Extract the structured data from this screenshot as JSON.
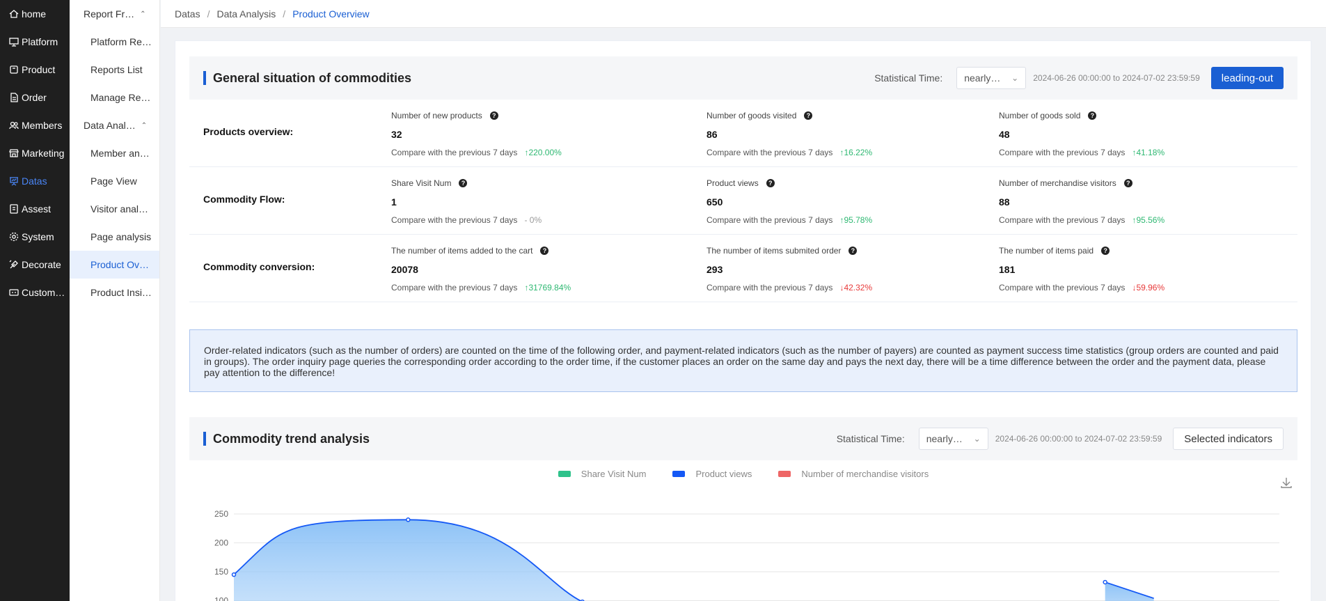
{
  "nav_primary": [
    {
      "label": "home",
      "icon": "home-icon"
    },
    {
      "label": "Platform",
      "icon": "monitor-icon"
    },
    {
      "label": "Product",
      "icon": "product-icon"
    },
    {
      "label": "Order",
      "icon": "document-icon"
    },
    {
      "label": "Members",
      "icon": "users-icon"
    },
    {
      "label": "Marketing",
      "icon": "shop-icon"
    },
    {
      "label": "Datas",
      "icon": "presentation-icon",
      "active": true
    },
    {
      "label": "Assest",
      "icon": "asset-icon"
    },
    {
      "label": "System",
      "icon": "gear-icon"
    },
    {
      "label": "Decorate",
      "icon": "decorate-icon"
    },
    {
      "label": "Custom…",
      "icon": "custom-icon"
    }
  ],
  "nav_secondary": [
    {
      "type": "group",
      "label": "Report Fr…"
    },
    {
      "type": "item",
      "label": "Platform Re…"
    },
    {
      "type": "item",
      "label": "Reports List"
    },
    {
      "type": "item",
      "label": "Manage Re…"
    },
    {
      "type": "group",
      "label": "Data Anal…"
    },
    {
      "type": "item",
      "label": "Member an…"
    },
    {
      "type": "item",
      "label": "Page View"
    },
    {
      "type": "item",
      "label": "Visitor anal…"
    },
    {
      "type": "item",
      "label": "Page analysis"
    },
    {
      "type": "item",
      "label": "Product Ov…",
      "active": true
    },
    {
      "type": "item",
      "label": "Product Insi…"
    }
  ],
  "breadcrumb": [
    "Datas",
    "Data Analysis",
    "Product Overview"
  ],
  "general": {
    "title": "General situation of commodities",
    "stat_label": "Statistical Time:",
    "select_value": "nearly…",
    "date_range": "2024-06-26 00:00:00 to 2024-07-02 23:59:59",
    "export_label": "leading-out"
  },
  "overview_rows": [
    {
      "label": "Products overview:",
      "metrics": [
        {
          "title": "Number of new products",
          "value": "32",
          "compare": "Compare with the previous 7 days",
          "change": "↑220.00%",
          "trend": "up"
        },
        {
          "title": "Number of goods visited",
          "value": "86",
          "compare": "Compare with the previous 7 days",
          "change": "↑16.22%",
          "trend": "up"
        },
        {
          "title": "Number of goods sold",
          "value": "48",
          "compare": "Compare with the previous 7 days",
          "change": "↑41.18%",
          "trend": "up"
        }
      ]
    },
    {
      "label": "Commodity Flow:",
      "metrics": [
        {
          "title": "Share Visit Num",
          "value": "1",
          "compare": "Compare with the previous 7 days",
          "change": "- 0%",
          "trend": "flat"
        },
        {
          "title": "Product views",
          "value": "650",
          "compare": "Compare with the previous 7 days",
          "change": "↑95.78%",
          "trend": "up"
        },
        {
          "title": "Number of merchandise visitors",
          "value": "88",
          "compare": "Compare with the previous 7 days",
          "change": "↑95.56%",
          "trend": "up"
        }
      ]
    },
    {
      "label": "Commodity conversion:",
      "metrics": [
        {
          "title": "The number of items added to the cart",
          "value": "20078",
          "compare": "Compare with the previous 7 days",
          "change": "↑31769.84%",
          "trend": "up"
        },
        {
          "title": "The number of items submited order",
          "value": "293",
          "compare": "Compare with the previous 7 days",
          "change": "↓42.32%",
          "trend": "down"
        },
        {
          "title": "The number of items paid",
          "value": "181",
          "compare": "Compare with the previous 7 days",
          "change": "↓59.96%",
          "trend": "down"
        }
      ]
    }
  ],
  "notice": "Order-related indicators (such as the number of orders) are counted on the time of the following order, and payment-related indicators (such as the number of payers) are counted as payment success time statistics (group orders are counted and paid in groups). The order inquiry page queries the corresponding order according to the order time, if the customer places an order on the same day and pays the next day, there will be a time difference between the order and the payment data, please pay attention to the difference!",
  "trend": {
    "title": "Commodity trend analysis",
    "stat_label": "Statistical Time:",
    "select_value": "nearly…",
    "date_range": "2024-06-26 00:00:00 to 2024-07-02 23:59:59",
    "indicators_label": "Selected indicators"
  },
  "chart_data": {
    "type": "line",
    "legend": [
      {
        "name": "Share Visit Num",
        "color": "#2fc28b"
      },
      {
        "name": "Product views",
        "color": "#1458f5"
      },
      {
        "name": "Number of merchandise visitors",
        "color": "#ee6666"
      }
    ],
    "yticks": [
      250,
      200,
      150,
      100
    ],
    "ylim": [
      0,
      250
    ],
    "series": [
      {
        "name": "Product views",
        "color": "#1458f5",
        "area": true,
        "values": [
          145,
          240,
          98,
          null,
          null,
          132,
          104
        ]
      }
    ],
    "grid": true
  }
}
